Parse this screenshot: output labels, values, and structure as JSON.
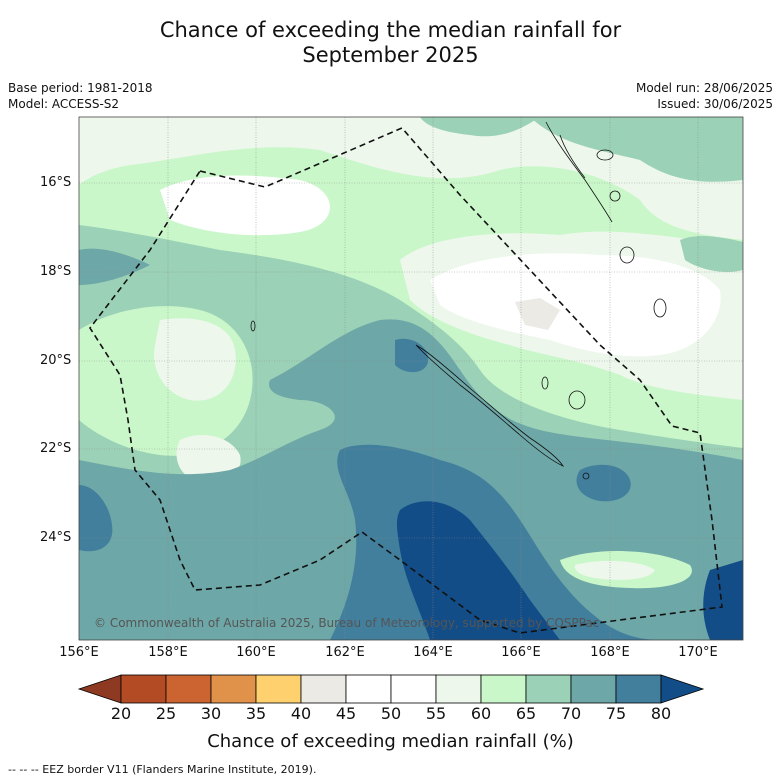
{
  "title_line1": "Chance of exceeding the median rainfall for",
  "title_line2": "September 2025",
  "base_period": "Base period: 1981-2018",
  "model": "Model: ACCESS-S2",
  "model_run": "Model run: 28/06/2025",
  "issued": "Issued: 30/06/2025",
  "copyright": "© Commonwealth of Australia 2025, Bureau of Meteorology, supported by COSPPac",
  "lat_labels": [
    "16°S",
    "18°S",
    "20°S",
    "22°S",
    "24°S"
  ],
  "lon_labels": [
    "156°E",
    "158°E",
    "160°E",
    "162°E",
    "164°E",
    "166°E",
    "168°E",
    "170°E"
  ],
  "colorbar": {
    "ticks": [
      "20",
      "25",
      "30",
      "35",
      "40",
      "45",
      "50",
      "55",
      "60",
      "65",
      "70",
      "75",
      "80"
    ],
    "colors": [
      "#8e3a22",
      "#b34b24",
      "#cc6431",
      "#e0914a",
      "#fed16e",
      "#ebeae5",
      "#ffffff",
      "#ffffff",
      "#edf7ec",
      "#c9f7c9",
      "#9bd1b6",
      "#6ea7a7",
      "#427f9d",
      "#134d87"
    ],
    "label": "Chance of exceeding median rainfall (%)"
  },
  "eez_legend": "--  --  -- EEZ border V11 (Flanders Marine Institute, 2019)."
}
